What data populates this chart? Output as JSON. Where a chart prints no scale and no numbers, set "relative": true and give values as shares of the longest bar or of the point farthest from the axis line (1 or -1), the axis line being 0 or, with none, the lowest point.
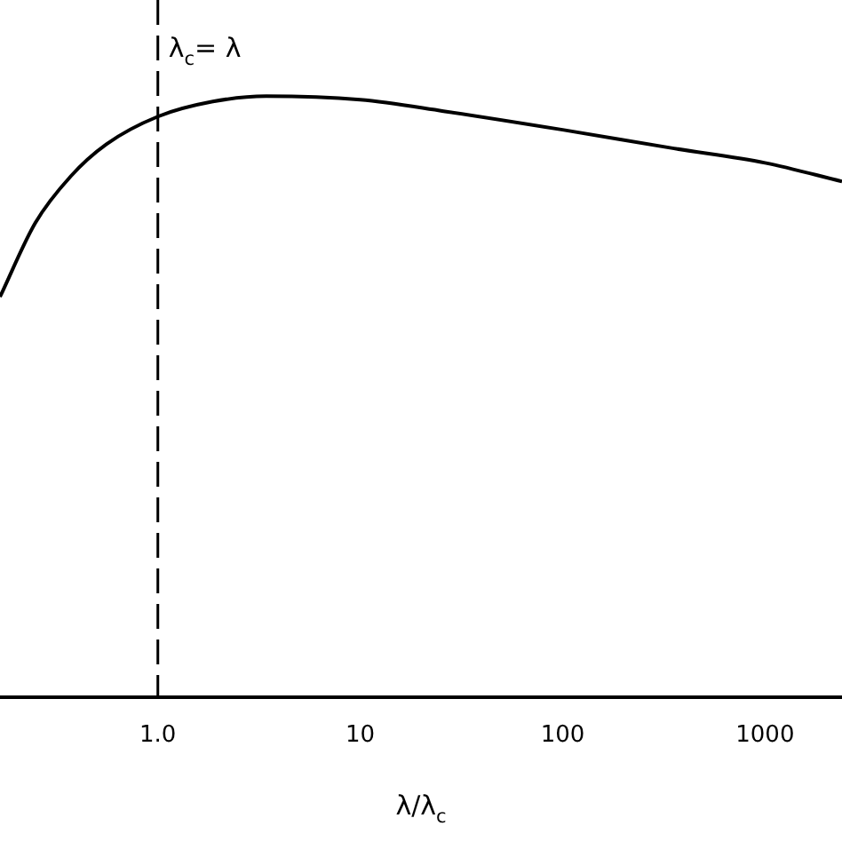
{
  "chart_data": {
    "type": "line",
    "relative": true,
    "log": "x",
    "x": [
      0.166,
      0.248,
      0.372,
      0.557,
      1,
      1.87,
      3.43,
      10,
      25.8,
      100,
      355,
      1000,
      2400
    ],
    "series": [
      {
        "color": "#000000",
        "values": [
          0.666,
          0.789,
          0.867,
          0.92,
          0.966,
          0.991,
          1,
          0.994,
          0.975,
          0.944,
          0.913,
          0.889,
          0.858
        ]
      }
    ],
    "xlim": [
      0.166,
      2400
    ],
    "xticks": [
      {
        "value": 1,
        "label": "1.0"
      },
      10,
      100,
      1000
    ],
    "xlabel": "λ/λ$_{c}$",
    "ref_lines": [
      {
        "axis": "x",
        "value": 1,
        "label": "λ$_{c}$= λ",
        "line_style": "dashed",
        "color": "#000000"
      }
    ],
    "grid": false,
    "legend": false,
    "marker": "none",
    "line_style": "solid"
  }
}
